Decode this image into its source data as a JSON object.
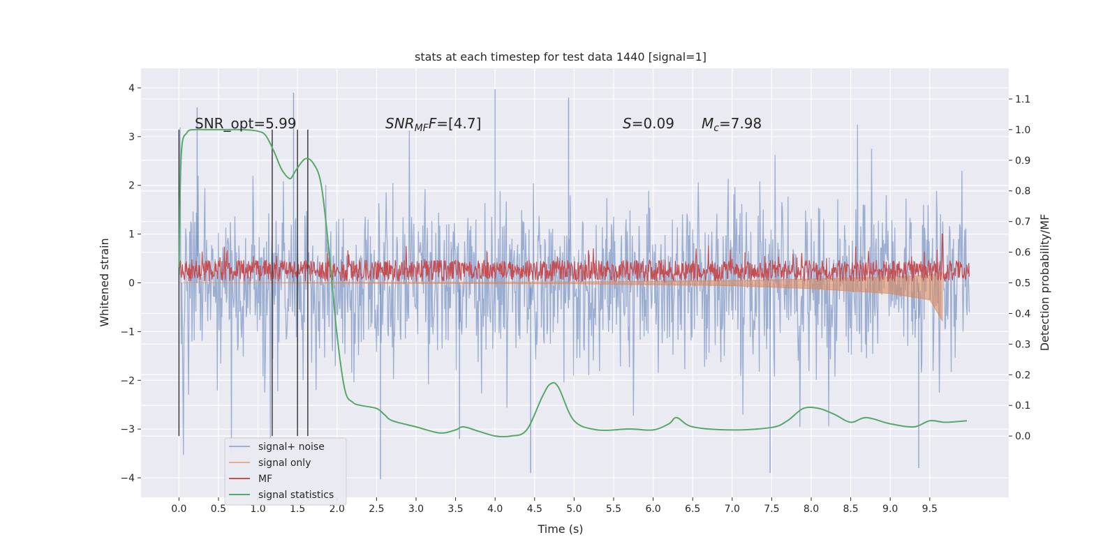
{
  "chart_data": {
    "type": "line",
    "title": "stats at each timestep for test data 1440 [signal=1]",
    "xlabel": "Time (s)",
    "ylabel": "Whitened strain",
    "ylabel_right": "Detection probability/MF",
    "xlim": [
      -0.48,
      10.5
    ],
    "ylim": [
      -4.4,
      4.4
    ],
    "ylim_right": [
      -0.2,
      1.2
    ],
    "x_ticks": [
      0.0,
      0.5,
      1.0,
      1.5,
      2.0,
      2.5,
      3.0,
      3.5,
      4.0,
      4.5,
      5.0,
      5.5,
      6.0,
      6.5,
      7.0,
      7.5,
      8.0,
      8.5,
      9.0,
      9.5
    ],
    "x_tick_labels": [
      "0.0",
      "0.5",
      "1.0",
      "1.5",
      "2.0",
      "2.5",
      "3.0",
      "3.5",
      "4.0",
      "4.5",
      "5.0",
      "5.5",
      "6.0",
      "6.5",
      "7.0",
      "7.5",
      "8.0",
      "8.5",
      "9.0",
      "9.5"
    ],
    "y_ticks": [
      -4,
      -3,
      -2,
      -1,
      0,
      1,
      2,
      3,
      4
    ],
    "y_tick_labels": [
      "−4",
      "−3",
      "−2",
      "−1",
      "0",
      "1",
      "2",
      "3",
      "4"
    ],
    "y_right_ticks": [
      0.0,
      0.1,
      0.2,
      0.3,
      0.4,
      0.5,
      0.6,
      0.7,
      0.8,
      0.9,
      1.0,
      1.1
    ],
    "y_right_tick_labels": [
      "0.0",
      "0.1",
      "0.2",
      "0.3",
      "0.4",
      "0.5",
      "0.6",
      "0.7",
      "0.8",
      "0.9",
      "1.0",
      "1.1"
    ],
    "grid": true,
    "legend_position": "lower-left",
    "legend": [
      {
        "label": "signal+ noise",
        "color": "#4c72b0"
      },
      {
        "label": "signal only",
        "color": "#dd8452"
      },
      {
        "label": "MF",
        "color": "#c44e52"
      },
      {
        "label": "signal statistics",
        "color": "#55a868"
      }
    ],
    "annotations": {
      "snr_opt": "SNR_opt=5.99",
      "snr_mf_main": "SNR",
      "snr_mf_sub": "MF",
      "snr_mf_rest": "=[4.7]",
      "s_main": "S",
      "s_rest": "=0.09",
      "mc_main": "M",
      "mc_sub": "c",
      "mc_rest": "=7.98"
    },
    "vertical_markers_x": [
      0.0,
      1.18,
      1.5,
      1.63
    ],
    "noise_envelope": {
      "x_start": 0.0,
      "x_end": 10.0,
      "typical_abs": 1.3,
      "peak_max": 3.97,
      "peak_min": -4.03
    },
    "signal_only": {
      "description_points_x": [
        0.0,
        5.0,
        7.0,
        8.0,
        9.0,
        9.5,
        9.66
      ],
      "upper_y": [
        0.0,
        0.02,
        0.05,
        0.08,
        0.12,
        0.16,
        0.22
      ],
      "lower_y": [
        0.0,
        -0.02,
        -0.06,
        -0.12,
        -0.22,
        -0.35,
        -0.78
      ]
    },
    "mf": {
      "x_start": 0.0,
      "x_end": 10.0,
      "baseline": 0.25,
      "amplitude": 0.22,
      "peak_max": 1.0
    },
    "signal_statistics": {
      "axis": "right",
      "x": [
        0.0,
        0.03,
        0.1,
        0.2,
        0.3,
        0.5,
        0.8,
        1.0,
        1.1,
        1.2,
        1.3,
        1.4,
        1.45,
        1.5,
        1.6,
        1.7,
        1.8,
        1.9,
        2.0,
        2.1,
        2.2,
        2.3,
        2.5,
        2.6,
        2.7,
        3.0,
        3.3,
        3.5,
        3.6,
        3.8,
        4.0,
        4.2,
        4.4,
        4.6,
        4.7,
        4.8,
        5.0,
        5.3,
        5.7,
        6.0,
        6.2,
        6.3,
        6.5,
        7.0,
        7.5,
        7.7,
        7.9,
        8.1,
        8.3,
        8.5,
        8.7,
        9.0,
        9.3,
        9.5,
        9.7,
        9.97
      ],
      "y": [
        0.55,
        0.92,
        0.99,
        1.0,
        1.0,
        1.0,
        1.0,
        0.995,
        0.98,
        0.93,
        0.87,
        0.84,
        0.855,
        0.875,
        0.905,
        0.89,
        0.82,
        0.6,
        0.33,
        0.15,
        0.11,
        0.1,
        0.09,
        0.07,
        0.05,
        0.03,
        0.01,
        0.02,
        0.03,
        0.015,
        0.0,
        0.0,
        0.02,
        0.13,
        0.17,
        0.16,
        0.05,
        0.02,
        0.023,
        0.02,
        0.04,
        0.06,
        0.03,
        0.02,
        0.028,
        0.05,
        0.09,
        0.09,
        0.07,
        0.045,
        0.06,
        0.04,
        0.03,
        0.05,
        0.045,
        0.05
      ]
    }
  }
}
